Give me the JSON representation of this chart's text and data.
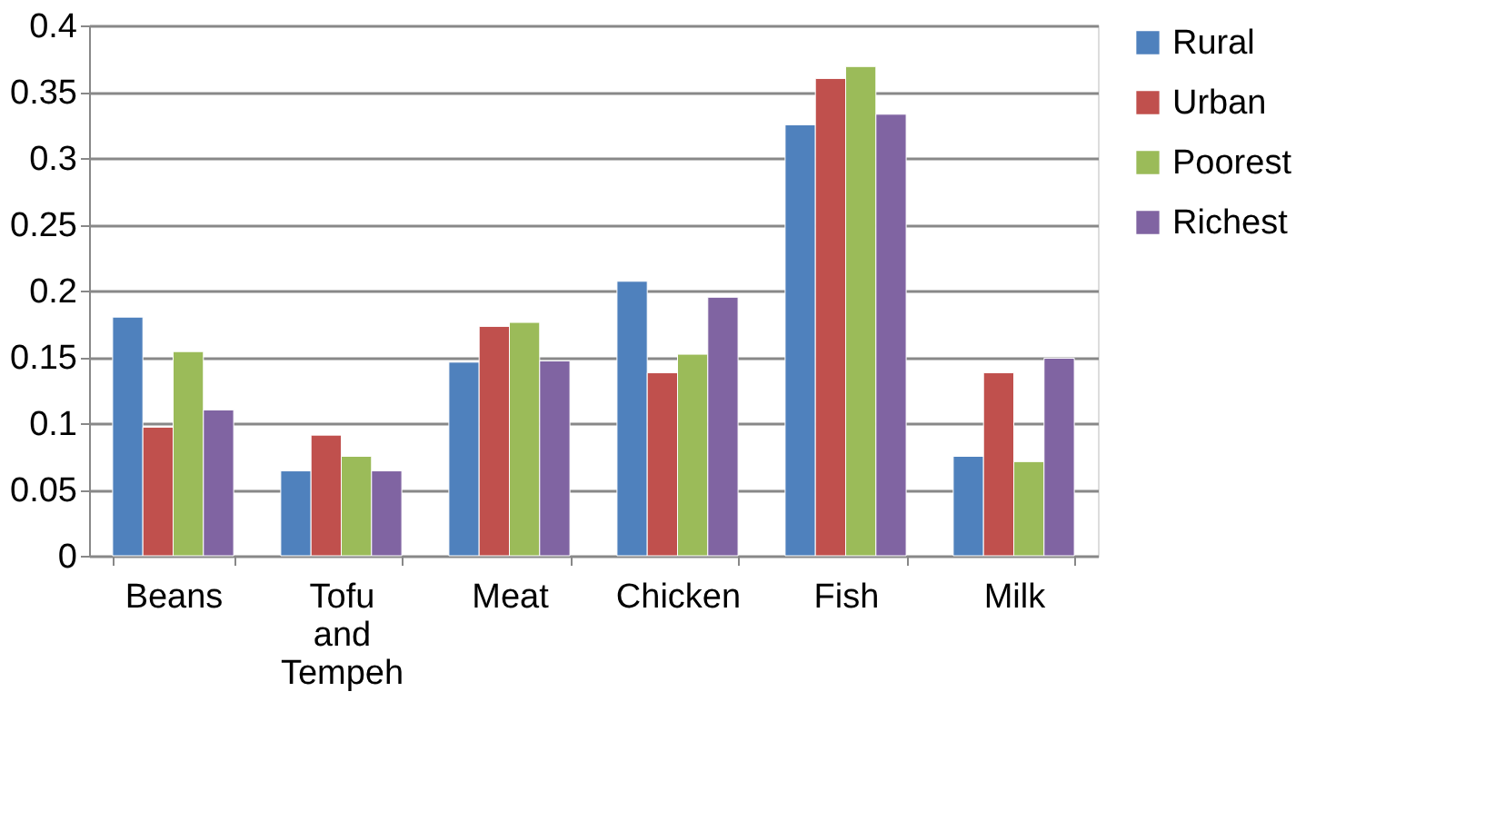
{
  "chart_data": {
    "type": "bar",
    "categories": [
      "Beans",
      "Tofu and Tempeh",
      "Meat",
      "Chicken",
      "Fish",
      "Milk"
    ],
    "series": [
      {
        "name": "Rural",
        "color": "#4f81bd",
        "values": [
          0.18,
          0.064,
          0.146,
          0.207,
          0.325,
          0.075
        ]
      },
      {
        "name": "Urban",
        "color": "#c0504d",
        "values": [
          0.097,
          0.091,
          0.173,
          0.138,
          0.36,
          0.138
        ]
      },
      {
        "name": "Poorest",
        "color": "#9bbb59",
        "values": [
          0.154,
          0.075,
          0.176,
          0.152,
          0.369,
          0.071
        ]
      },
      {
        "name": "Richest",
        "color": "#8064a2",
        "values": [
          0.11,
          0.064,
          0.147,
          0.195,
          0.333,
          0.149
        ]
      }
    ],
    "ylim": [
      0,
      0.4
    ],
    "yticks": [
      0,
      0.05,
      0.1,
      0.15,
      0.2,
      0.25,
      0.3,
      0.35,
      0.4
    ],
    "grid": "y",
    "legend": "right"
  }
}
